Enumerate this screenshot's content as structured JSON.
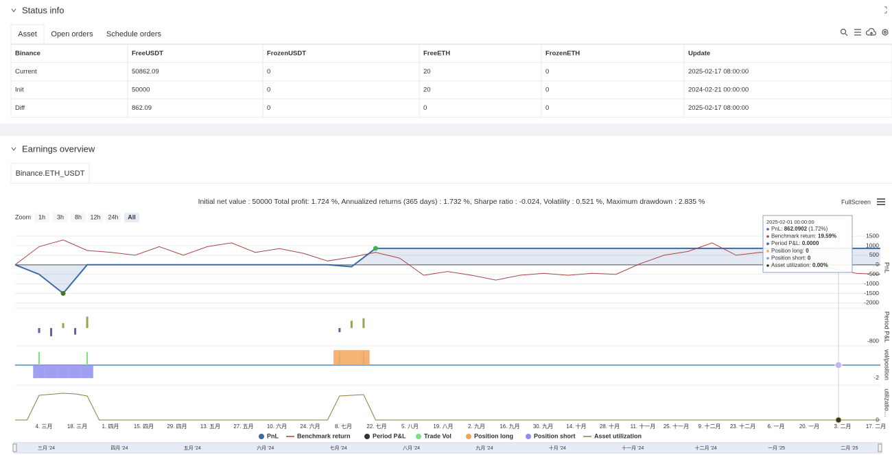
{
  "status": {
    "title": "Status info",
    "tabs": [
      "Asset",
      "Open orders",
      "Schedule orders"
    ],
    "table": {
      "header": [
        "Binance",
        "FreeUSDT",
        "FrozenUSDT",
        "FreeETH",
        "FrozenETH",
        "Update"
      ],
      "rows": [
        [
          "Current",
          "50862.09",
          "0",
          "20",
          "0",
          "2025-02-17 08:00:00"
        ],
        [
          "Init",
          "50000",
          "0",
          "20",
          "0",
          "2024-02-21 00:00:00"
        ],
        [
          "Diff",
          "862.09",
          "0",
          "0",
          "0",
          "2025-02-17 08:00:00"
        ]
      ]
    }
  },
  "earnings": {
    "title": "Earnings overview",
    "tab": "Binance.ETH_USDT",
    "summary": "Initial net value : 50000 Total profit: 1.724 %, Annualized returns (365 days) : 1.732 %, Sharpe ratio : -0.024, Volatility : 0.521 %, Maximum drawdown : 2.835 %",
    "fullscreen": "FullScreen",
    "zoom_label": "Zoom",
    "zoom_buttons": [
      "1h",
      "3h",
      "8h",
      "12h",
      "24h",
      "All"
    ]
  },
  "chart_data": [
    {
      "type": "line",
      "y_label": "PnL",
      "ylim": [
        -2200,
        1900
      ],
      "yticks": [
        1500,
        1000,
        500,
        0,
        -500,
        -1000,
        -1500,
        -2000
      ],
      "grid": true,
      "series": [
        {
          "name": "PnL",
          "color": "#3b6aa8",
          "values": [
            0,
            -500,
            -1500,
            0,
            0,
            0,
            0,
            0,
            0,
            0,
            0,
            0,
            0,
            0,
            -100,
            862,
            862,
            862,
            862,
            862,
            862,
            862,
            862,
            862,
            862,
            862,
            862,
            862,
            862,
            862,
            862,
            862,
            862,
            862,
            862,
            862,
            862
          ]
        },
        {
          "name": "Benchmark return",
          "color": "#a84444",
          "values": [
            0,
            950,
            1300,
            750,
            650,
            500,
            950,
            500,
            950,
            1150,
            650,
            850,
            600,
            200,
            400,
            650,
            350,
            -550,
            -350,
            -550,
            -800,
            -550,
            -450,
            -550,
            -450,
            -500,
            50,
            500,
            700,
            1150,
            500,
            650,
            600,
            300,
            -200,
            -450,
            -500
          ]
        }
      ]
    },
    {
      "type": "bar",
      "y_label": "Period P&L",
      "ylim": [
        -1050,
        1180
      ],
      "yticks": [
        -800
      ],
      "series": [
        {
          "name": "Period P&L",
          "color": "#333333",
          "positive_color": "#8fa84a",
          "negative_color": "#6b5aa0",
          "values": [
            0,
            0,
            -300,
            -500,
            300,
            -400,
            700,
            0,
            0,
            0,
            0,
            0,
            0,
            0,
            0,
            0,
            0,
            0,
            0,
            0,
            0,
            0,
            0,
            0,
            0,
            0,
            0,
            -250,
            450,
            600,
            0,
            0,
            0,
            0,
            0,
            0,
            0,
            0,
            0,
            0,
            0,
            0,
            0,
            0,
            0,
            0,
            0,
            0,
            0,
            0,
            0,
            0,
            0,
            0,
            0,
            0,
            0,
            0,
            0,
            0,
            0,
            0,
            0,
            0,
            0,
            0,
            0,
            0,
            0,
            0,
            0,
            0,
            0
          ]
        }
      ]
    },
    {
      "type": "area",
      "y_label": "vol/position",
      "ylim": [
        -2.74,
        2.84
      ],
      "yticks": [
        -2
      ],
      "series": [
        {
          "name": "Trade Vol",
          "type": "bar",
          "color": "#7ee07a",
          "values": [
            0,
            0,
            2,
            0,
            0,
            0,
            2,
            0,
            0,
            0,
            0,
            0,
            0,
            0,
            0,
            0,
            0,
            0,
            0,
            0,
            0,
            0,
            0,
            0,
            0,
            0,
            0,
            2,
            0,
            2,
            0,
            0,
            0,
            0,
            0,
            0,
            0,
            0,
            0,
            0,
            0,
            0,
            0,
            0,
            0,
            0,
            0,
            0,
            0,
            0,
            0,
            0,
            0,
            0,
            0,
            0,
            0,
            0,
            0,
            0,
            0,
            0,
            0,
            0,
            0,
            0,
            0,
            0,
            0,
            0,
            0,
            0,
            0
          ]
        },
        {
          "name": "Position long",
          "type": "area",
          "color": "#f5a35c",
          "values": [
            0,
            0,
            0,
            0,
            0,
            0,
            0,
            0,
            0,
            0,
            0,
            0,
            0,
            0,
            0,
            0,
            0,
            0,
            0,
            0,
            0,
            0,
            0,
            0,
            0,
            0,
            0,
            2.3,
            2.3,
            2.3,
            0,
            0,
            0,
            0,
            0,
            0,
            0,
            0,
            0,
            0,
            0,
            0,
            0,
            0,
            0,
            0,
            0,
            0,
            0,
            0,
            0,
            0,
            0,
            0,
            0,
            0,
            0,
            0,
            0,
            0,
            0,
            0,
            0,
            0,
            0,
            0,
            0,
            0,
            0,
            0,
            0,
            0,
            0
          ]
        },
        {
          "name": "Position short",
          "type": "area",
          "color": "#8f8ff0",
          "values": [
            0,
            0,
            -2,
            -2,
            -2,
            -2,
            -2,
            0,
            0,
            0,
            0,
            0,
            0,
            0,
            0,
            0,
            0,
            0,
            0,
            0,
            0,
            0,
            0,
            0,
            0,
            0,
            0,
            0,
            0,
            0,
            0,
            0,
            0,
            0,
            0,
            0,
            0,
            0,
            0,
            0,
            0,
            0,
            0,
            0,
            0,
            0,
            0,
            0,
            0,
            0,
            0,
            0,
            0,
            0,
            0,
            0,
            0,
            0,
            0,
            0,
            0,
            0,
            0,
            0,
            0,
            0,
            0,
            0,
            0,
            0,
            0,
            0,
            0
          ]
        }
      ]
    },
    {
      "type": "line",
      "y_label": "utilizatio…",
      "ylim": [
        0,
        1
      ],
      "yticks": [
        0
      ],
      "series": [
        {
          "name": "Asset utilization",
          "color": "#8b7d3a",
          "values": [
            0,
            0,
            0.72,
            0.75,
            0.78,
            0.76,
            0.7,
            0,
            0,
            0,
            0,
            0,
            0,
            0,
            0,
            0,
            0,
            0,
            0,
            0,
            0,
            0,
            0,
            0,
            0,
            0,
            0,
            0.7,
            0.72,
            0.74,
            0,
            0,
            0,
            0,
            0,
            0,
            0,
            0,
            0,
            0,
            0,
            0,
            0,
            0,
            0,
            0,
            0,
            0,
            0,
            0,
            0,
            0,
            0,
            0,
            0,
            0,
            0,
            0,
            0,
            0,
            0,
            0,
            0,
            0,
            0,
            0,
            0,
            0,
            0,
            0,
            0,
            0,
            0
          ]
        }
      ]
    }
  ],
  "x_axis": {
    "labels": [
      "4. 三月",
      "18. 三月",
      "1. 四月",
      "15. 四月",
      "29. 四月",
      "13. 五月",
      "27. 五月",
      "10. 六月",
      "24. 六月",
      "8. 七月",
      "22. 七月",
      "5. 八月",
      "19. 八月",
      "2. 九月",
      "16. 九月",
      "30. 九月",
      "14. 十月",
      "28. 十月",
      "11. 十一月",
      "25. 十一月",
      "9. 十二月",
      "23. 十二月",
      "6. 一月",
      "20. 一月",
      "3. 二月",
      "17. 二月"
    ]
  },
  "navigator": {
    "labels": [
      "三月 '24",
      "四月 '24",
      "五月 '24",
      "六月 '24",
      "七月 '24",
      "八月 '24",
      "九月 '24",
      "十月 '24",
      "十一月 '24",
      "十二月 '24",
      "一月 '25",
      "二月 '25"
    ]
  },
  "tooltip": {
    "title": "2025-02-01 00:00:00",
    "items": [
      {
        "label": "PnL: ",
        "value": "862.0902",
        "note": " (1.72%)"
      },
      {
        "label": "Benchmark return: ",
        "value": "19.59%"
      },
      {
        "label": "Period P&L: ",
        "value": "0.0000"
      },
      {
        "label": "Position long: ",
        "value": "0"
      },
      {
        "label": "Position short: ",
        "value": "0"
      },
      {
        "label": "Asset utilization: ",
        "value": "0.00%"
      }
    ]
  }
}
